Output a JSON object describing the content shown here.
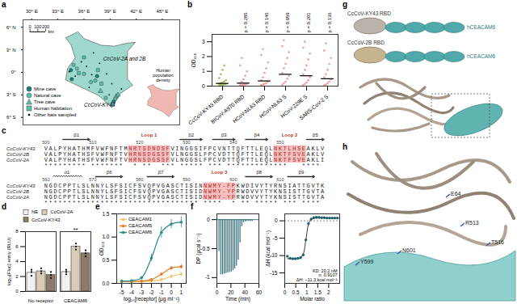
{
  "panel_labels": [
    "a",
    "b",
    "c",
    "d",
    "e",
    "f",
    "g",
    "h"
  ],
  "map": {
    "xlim": [
      29,
      47
    ],
    "ylim": [
      -7,
      7
    ],
    "xticks": [
      {
        "value": 30,
        "label": "30° E"
      },
      {
        "value": 33,
        "label": "33° E"
      },
      {
        "value": 36,
        "label": "36° E"
      },
      {
        "value": 39,
        "label": "39° E"
      },
      {
        "value": 42,
        "label": "42° E"
      },
      {
        "value": 45,
        "label": "45° E"
      }
    ],
    "yticks": [
      {
        "value": 6,
        "label": "6° N"
      },
      {
        "value": 3,
        "label": "3° N"
      },
      {
        "value": 0,
        "label": "0°"
      },
      {
        "value": -3,
        "label": "3° S"
      },
      {
        "value": -6,
        "label": "6° S"
      }
    ],
    "country_outline": [
      [
        33.9,
        4.6
      ],
      [
        35.3,
        5.4
      ],
      [
        36.0,
        4.5
      ],
      [
        38.0,
        3.6
      ],
      [
        39.5,
        3.5
      ],
      [
        41.0,
        3.9
      ],
      [
        41.9,
        4.0
      ],
      [
        41.0,
        2.8
      ],
      [
        41.0,
        -0.9
      ],
      [
        41.6,
        -1.7
      ],
      [
        40.2,
        -2.8
      ],
      [
        39.2,
        -4.7
      ],
      [
        37.7,
        -3.1
      ],
      [
        33.9,
        -1.0
      ],
      [
        34.1,
        0.5
      ],
      [
        35.0,
        1.9
      ],
      [
        34.5,
        3.7
      ],
      [
        33.9,
        4.6
      ]
    ],
    "country_color": "#9fd8cc",
    "site_groups": [
      {
        "name": "Mine cave",
        "marker": "circle",
        "color": "#1b7f74",
        "points": [
          [
            34.6,
            -0.9
          ],
          [
            34.5,
            0.3
          ],
          [
            37.5,
            -0.5
          ],
          [
            39.4,
            -3.9
          ]
        ]
      },
      {
        "name": "Natural cave",
        "marker": "circle",
        "color": "#5cc0ae",
        "points": [
          [
            35.2,
            0.5
          ],
          [
            36.0,
            -0.2
          ],
          [
            36.8,
            -1.3
          ],
          [
            37.3,
            -1.1
          ],
          [
            38.5,
            -3.4
          ],
          [
            39.6,
            -3.5
          ],
          [
            34.8,
            1.0
          ]
        ]
      },
      {
        "name": "Tree cave",
        "marker": "triangle",
        "color": "#5cc0ae",
        "points": [
          [
            39.7,
            -3.2
          ],
          [
            39.9,
            -3.0
          ],
          [
            37.9,
            -2.5
          ]
        ]
      },
      {
        "name": "Human habitation",
        "marker": "square",
        "color": "#5cc0ae",
        "points": [
          [
            36.0,
            2.0
          ],
          [
            37.6,
            0.3
          ],
          [
            39.3,
            -4.2
          ],
          [
            35.4,
            -0.1
          ],
          [
            38.0,
            -1.5
          ]
        ]
      },
      {
        "name": "Other bats sampled",
        "marker": "dot",
        "color": "#000000",
        "points": [
          [
            34.3,
            0.1
          ],
          [
            35.0,
            -0.5
          ],
          [
            36.3,
            0.8
          ],
          [
            36.9,
            -0.3
          ],
          [
            37.8,
            1.2
          ],
          [
            38.6,
            -0.2
          ],
          [
            39.2,
            -1.5
          ],
          [
            40.3,
            -2.2
          ],
          [
            36.6,
            -2.0
          ],
          [
            35.7,
            1.4
          ],
          [
            38.9,
            -3.0
          ],
          [
            37.1,
            2.6
          ]
        ]
      }
    ],
    "annotations": [
      {
        "text": "CcCoV-2A and 2B",
        "lon": 38.2,
        "lat": 1.8
      },
      {
        "text": "CcCoV-KY43",
        "lon": 36.0,
        "lat": -4.4
      }
    ],
    "scale_bar": {
      "ticks": [
        0,
        100,
        200
      ],
      "unit": "km"
    },
    "inset": {
      "title": "Human population density",
      "color": "#f0b8b0"
    }
  },
  "chart_data": [
    {
      "type": "strip",
      "y_label": "OD₄₅₀",
      "categories": [
        "CcCoV-KY43 RBD",
        "BtCoV-A970 RBD",
        "HCoV-NL63 RBD",
        "HCoV-NL63 S",
        "HCoV-229E S",
        "SARS-CoV-2 S"
      ],
      "colors": [
        "#8fb04a",
        "#ee8b86",
        "#ee8b86",
        "#ee8b86",
        "#ee8b86",
        "#ee8b86"
      ],
      "points": [
        [
          0.05,
          0.08,
          0.1,
          0.12,
          0.15,
          0.18,
          0.2,
          0.25,
          0.3,
          0.4,
          0.55,
          0.8,
          1.1,
          1.4
        ],
        [
          0.05,
          0.07,
          0.1,
          0.12,
          0.15,
          0.2,
          0.3,
          0.45,
          0.7,
          1.0,
          1.4,
          1.9
        ],
        [
          0.06,
          0.1,
          0.15,
          0.2,
          0.3,
          0.4,
          0.6,
          0.9,
          1.2,
          1.6,
          2.1,
          2.5
        ],
        [
          0.1,
          0.2,
          0.3,
          0.5,
          0.7,
          0.9,
          1.2,
          1.5,
          1.9,
          2.3,
          2.7,
          3.1
        ],
        [
          0.08,
          0.15,
          0.25,
          0.4,
          0.6,
          0.8,
          1.1,
          1.4,
          1.8,
          2.2,
          2.6,
          3.0
        ],
        [
          0.06,
          0.1,
          0.2,
          0.3,
          0.45,
          0.6,
          0.8,
          1.1,
          1.5,
          1.9,
          2.4,
          2.9
        ]
      ],
      "medians": [
        0.18,
        0.2,
        0.35,
        0.8,
        0.7,
        0.5
      ],
      "p_labels": [
        null,
        "p = 0.285",
        "p = 0.146",
        "p = 0.059",
        "p = 0.201",
        "p = 0.136"
      ],
      "ylim": [
        0,
        3.5
      ],
      "yticks": [
        0,
        1,
        2,
        3
      ]
    },
    {
      "type": "bar",
      "y_label": "log₁₀[Fluc] entry (RLU)",
      "legend": "top",
      "categories": [
        "No receptor",
        "CEACAM6"
      ],
      "series": [
        {
          "name": "NE",
          "color": "#f2f2f2",
          "values": [
            2.5,
            2.6
          ],
          "points": [
            [
              2.1,
              2.6,
              2.9
            ],
            [
              2.3,
              2.6,
              2.9
            ]
          ]
        },
        {
          "name": "CcCoV-2A",
          "color": "#d9cbb5",
          "values": [
            2.7,
            6.0
          ],
          "points": [
            [
              2.4,
              2.7,
              3.1
            ],
            [
              5.6,
              6.0,
              6.4
            ]
          ]
        },
        {
          "name": "CcCoV-KY43",
          "color": "#8c7b6b",
          "values": [
            2.2,
            5.1
          ],
          "points": [
            [
              1.8,
              2.2,
              2.6
            ],
            [
              4.7,
              5.1,
              5.5
            ]
          ]
        }
      ],
      "annotations": [
        {
          "category": "CEACAM6",
          "text": "**"
        }
      ],
      "ylim": [
        0,
        8
      ],
      "yticks": [
        0,
        2,
        4,
        6,
        8
      ]
    },
    {
      "type": "line",
      "x_label": "log₁₀[receptor] (µg ml⁻¹)",
      "y_label": "OD₄₅₀",
      "legend": "top-left",
      "x": [
        -5,
        -4,
        -3,
        -2,
        -1,
        0,
        1
      ],
      "series": [
        {
          "name": "CEACAM1",
          "color": "#f2c46d",
          "values": [
            0.04,
            0.04,
            0.04,
            0.05,
            0.08,
            0.15,
            0.2
          ],
          "errors": [
            0.01,
            0.01,
            0.01,
            0.01,
            0.02,
            0.03,
            0.04
          ]
        },
        {
          "name": "CEACAM5",
          "color": "#e07b28",
          "values": [
            0.04,
            0.04,
            0.05,
            0.08,
            0.2,
            0.33,
            0.36
          ],
          "errors": [
            0.01,
            0.01,
            0.01,
            0.02,
            0.03,
            0.04,
            0.05
          ]
        },
        {
          "name": "CEACAM6",
          "color": "#2b8a8a",
          "values": [
            0.05,
            0.06,
            0.12,
            0.55,
            1.1,
            1.28,
            1.32
          ],
          "errors": [
            0.01,
            0.01,
            0.03,
            0.08,
            0.12,
            0.1,
            0.12
          ]
        }
      ],
      "xlim": [
        -5.5,
        1.5
      ],
      "xticks": [
        -5,
        -4,
        -3,
        -2,
        -1,
        0,
        1
      ],
      "ylim": [
        0,
        1.5
      ],
      "yticks": [
        {
          "value": 0,
          "label": "0.0"
        },
        {
          "value": 0.5,
          "label": "0.5"
        },
        {
          "value": 1,
          "label": "1.0"
        },
        {
          "value": 1.5,
          "label": "1.5"
        }
      ]
    },
    {
      "type": "itc_raw",
      "x_label": "Time (min)",
      "y_label": "DP (µcal s⁻¹)",
      "baseline": 0,
      "injections": {
        "time": [
          3,
          5.5,
          8,
          10.5,
          13,
          15.5,
          18,
          20.5,
          23,
          25.5,
          28,
          30.5,
          33,
          35.5,
          38,
          40.5,
          43,
          45.5,
          48,
          50.5
        ],
        "peak": [
          -0.55,
          -0.95,
          -0.95,
          -0.94,
          -0.93,
          -0.92,
          -0.91,
          -0.9,
          -0.88,
          -0.85,
          -0.8,
          -0.7,
          -0.4,
          -0.12,
          -0.05,
          -0.04,
          -0.03,
          -0.03,
          -0.03,
          -0.03
        ]
      },
      "xlim": [
        0,
        60
      ],
      "xticks": [
        0,
        20,
        40,
        60
      ],
      "ylim": [
        -1.1,
        0.1
      ],
      "yticks": [
        -1,
        -0.5,
        0
      ]
    },
    {
      "type": "scatter",
      "x_label": "Molar ratio",
      "y_label": "ΔH (kcal mol⁻¹)",
      "x": [
        0.12,
        0.24,
        0.36,
        0.48,
        0.6,
        0.72,
        0.84,
        0.96,
        1.08,
        1.2,
        1.32,
        1.44,
        1.56,
        1.68,
        1.8,
        1.92,
        2.04,
        2.16,
        2.28,
        2.4
      ],
      "values": [
        -10.2,
        -10.8,
        -10.9,
        -10.9,
        -10.8,
        -10.6,
        -9.8,
        -5.5,
        -0.8,
        0.5,
        0.9,
        1.0,
        1.0,
        0.9,
        0.9,
        0.8,
        0.8,
        0.8,
        0.8,
        0.8
      ],
      "fit": [
        -10.9,
        -10.9,
        -10.9,
        -10.9,
        -10.8,
        -10.6,
        -9.6,
        -5.6,
        -1.0,
        0.4,
        0.7,
        0.8,
        0.8,
        0.8,
        0.8,
        0.8,
        0.8,
        0.8,
        0.8,
        0.8
      ],
      "color": "#1f5f6b",
      "reference_line": 0,
      "annotations": [
        "KD: 20.2 nM",
        "n: 0.9107",
        "ΔH: −11.3 kcal mol⁻¹"
      ],
      "xlim": [
        0,
        2.5
      ],
      "xticks": [
        0,
        0.5,
        1,
        1.5,
        2
      ],
      "ylim": [
        -18,
        2
      ],
      "yticks": [
        -15,
        -10,
        -5,
        0
      ]
    }
  ],
  "alignment": {
    "highlight_color": "#f6c0c0",
    "blocks": [
      {
        "start": 500,
        "ticks": [
          500,
          510,
          520,
          530,
          540,
          550
        ],
        "features": [
          {
            "label": "β1",
            "type": "strand",
            "start": 504,
            "end": 509
          },
          {
            "label": "Loop 1",
            "type": "loop",
            "start": 518,
            "end": 526
          },
          {
            "label": "β2",
            "type": "strand",
            "start": 529,
            "end": 533
          },
          {
            "label": "β3",
            "type": "strand",
            "start": 536,
            "end": 540
          },
          {
            "label": "β4",
            "type": "strand",
            "start": 543,
            "end": 547
          },
          {
            "label": "Loop 2",
            "type": "loop",
            "start": 549,
            "end": 555
          },
          {
            "label": "β5",
            "type": "strand",
            "start": 556,
            "end": 559
          }
        ],
        "highlights": [
          [
            518,
            526
          ],
          [
            549,
            555
          ]
        ],
        "rows": [
          {
            "name": "CcCoV-KY43",
            "seq": "VALPYHATHMFVWFNFTMNRTSDNDSFVINGGSIFPCVNTTQFTTLEQLNKTLHSEAKLV"
          },
          {
            "name": "CcCoV-2B",
            "seq": "VALPYHATHSFVWFNFTVHRNSDGSSFVLNGGSLFPCVDTTQFTTLEQLNKTFSVEAKLV"
          },
          {
            "name": "CcCoV-2A",
            "seq": "VALPYHATHSFVWFNFTVHRNSDGSSFVLNGGSLFPCVDTTQFTTLEQLNKTFSVEAKLI"
          }
        ],
        "conservation": "********* *******  * **  *** ***** *** *************   **** "
      },
      {
        "start": 560,
        "ticks": [
          560,
          570,
          580,
          590,
          600,
          610
        ],
        "features": [
          {
            "label": "α1",
            "type": "helix",
            "start": 562,
            "end": 567
          },
          {
            "label": "β6",
            "type": "strand",
            "start": 571,
            "end": 576
          },
          {
            "label": "β7",
            "type": "strand",
            "start": 582,
            "end": 587
          },
          {
            "label": "Loop 3",
            "type": "loop",
            "start": 594,
            "end": 600
          },
          {
            "label": "β8",
            "type": "strand",
            "start": 603,
            "end": 608
          },
          {
            "label": "β9",
            "type": "strand",
            "start": 612,
            "end": 617
          }
        ],
        "highlights": [
          [
            594,
            600
          ]
        ],
        "rows": [
          {
            "name": "CcCoV-KY43",
            "seq": "NGDCPPTLSLNNYLSFSICFSVQPVGASCTISINNWMY-FPKWDIVYTYRNSIATTGVTK"
          },
          {
            "name": "CcCoV-2B",
            "seq": "NGDCPPTLSLNNYLSFSICFSVQPVGASCTISIDNWMY-YPRWDVVYTYKNSISTTGVTA"
          },
          {
            "name": "CcCoV-2A",
            "seq": "NGDCPPTLSLNNYLSFSICFSVQPVGASCTISIDNWMY-YPRWDVVYTYKNSISTTGVTA"
          }
        ],
        "conservation": "********************************* ****  * ** ***** *** **** "
      }
    ]
  },
  "structure": {
    "g": {
      "labels": [
        "CcCoV-KY43 RBD",
        "CcCoV-2B RBD"
      ],
      "receptor": "hCEACAM6"
    },
    "h": {
      "residues": [
        "E64",
        "R513",
        "T516",
        "Y599",
        "N601"
      ]
    }
  }
}
